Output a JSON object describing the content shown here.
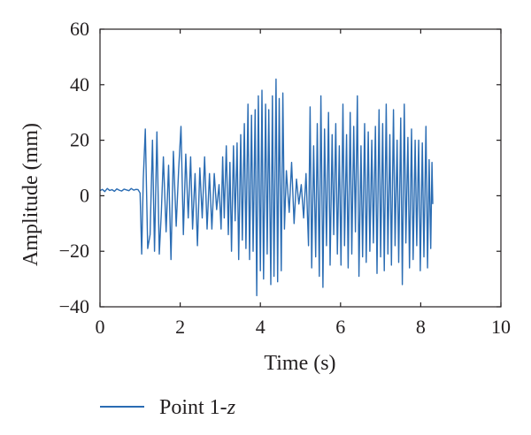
{
  "chart_data": {
    "type": "line",
    "xlabel": "Time (s)",
    "ylabel": "Amplitude (mm)",
    "xlim": [
      0,
      10
    ],
    "ylim": [
      -40,
      60
    ],
    "xticks": [
      0,
      2,
      4,
      6,
      8,
      10
    ],
    "yticks": [
      -40,
      -20,
      0,
      20,
      40,
      60
    ],
    "xtick_labels": [
      "0",
      "2",
      "4",
      "6",
      "8",
      "10"
    ],
    "ytick_labels": [
      "−40",
      "−20",
      "0",
      "20",
      "40",
      "60"
    ],
    "grid": false,
    "legend_position": "below",
    "series": [
      {
        "name": "Point 1-z",
        "color": "#2a6cb3",
        "x": [
          0,
          0.06,
          0.12,
          0.18,
          0.24,
          0.3,
          0.36,
          0.42,
          0.48,
          0.54,
          0.6,
          0.66,
          0.72,
          0.78,
          0.84,
          0.9,
          0.95,
          1.0,
          1.04,
          1.08,
          1.13,
          1.19,
          1.25,
          1.31,
          1.36,
          1.42,
          1.48,
          1.53,
          1.58,
          1.65,
          1.71,
          1.77,
          1.83,
          1.9,
          1.96,
          2.02,
          2.08,
          2.14,
          2.2,
          2.26,
          2.31,
          2.37,
          2.43,
          2.49,
          2.55,
          2.61,
          2.67,
          2.73,
          2.79,
          2.85,
          2.91,
          2.97,
          3.02,
          3.06,
          3.1,
          3.15,
          3.2,
          3.24,
          3.28,
          3.33,
          3.37,
          3.42,
          3.46,
          3.51,
          3.55,
          3.6,
          3.64,
          3.69,
          3.73,
          3.78,
          3.82,
          3.87,
          3.91,
          3.95,
          4.0,
          4.04,
          4.08,
          4.13,
          4.17,
          4.21,
          4.26,
          4.3,
          4.34,
          4.39,
          4.43,
          4.47,
          4.52,
          4.56,
          4.6,
          4.65,
          4.72,
          4.78,
          4.84,
          4.9,
          4.96,
          5.02,
          5.08,
          5.14,
          5.2,
          5.24,
          5.28,
          5.33,
          5.38,
          5.42,
          5.47,
          5.51,
          5.56,
          5.6,
          5.65,
          5.7,
          5.74,
          5.79,
          5.83,
          5.88,
          5.92,
          5.97,
          6.01,
          6.06,
          6.1,
          6.15,
          6.19,
          6.24,
          6.28,
          6.33,
          6.37,
          6.42,
          6.46,
          6.51,
          6.55,
          6.6,
          6.64,
          6.69,
          6.73,
          6.78,
          6.82,
          6.87,
          6.91,
          6.96,
          7.0,
          7.05,
          7.09,
          7.14,
          7.18,
          7.23,
          7.27,
          7.32,
          7.36,
          7.41,
          7.45,
          7.5,
          7.54,
          7.59,
          7.63,
          7.68,
          7.72,
          7.77,
          7.81,
          7.86,
          7.9,
          7.95,
          7.99,
          8.04,
          8.08,
          8.13,
          8.17,
          8.21,
          8.25,
          8.28,
          8.3
        ],
        "y": [
          1.8,
          2.3,
          1.5,
          2.6,
          1.9,
          2.2,
          1.6,
          2.5,
          2.0,
          1.7,
          2.4,
          2.1,
          1.8,
          2.6,
          2.0,
          2.3,
          2.2,
          1.0,
          -21,
          6,
          24,
          -19,
          -14,
          20,
          -20,
          23,
          -21,
          -6,
          14,
          -13,
          11,
          -23,
          16,
          -11,
          9,
          25,
          -14,
          15,
          -8,
          14,
          -12,
          8,
          -18,
          10,
          -8,
          14,
          -12,
          8,
          -12,
          8,
          -5,
          4,
          -12,
          14,
          -8,
          18,
          -14,
          12,
          -20,
          18,
          -9,
          19,
          -23,
          22,
          -16,
          26,
          -19,
          33,
          -23,
          29,
          -20,
          31,
          -36,
          36,
          -27,
          38,
          -30,
          33,
          -21,
          31,
          -32,
          36,
          -29,
          42,
          -31,
          35,
          -27,
          37,
          -12,
          9,
          -6,
          12,
          -10,
          6,
          -3,
          4,
          -8,
          8,
          -18,
          32,
          -26,
          18,
          -22,
          26,
          -29,
          36,
          -33,
          24,
          -18,
          30,
          -25,
          22,
          -14,
          26,
          -21,
          18,
          -25,
          33,
          -18,
          22,
          -26,
          30,
          -21,
          25,
          -13,
          36,
          -29,
          18,
          -22,
          26,
          -24,
          23,
          -20,
          20,
          -17,
          25,
          -28,
          31,
          -22,
          26,
          -27,
          33,
          -21,
          22,
          -25,
          31,
          -18,
          20,
          -24,
          28,
          -32,
          33,
          -17,
          21,
          -26,
          24,
          -23,
          20,
          -18,
          20,
          -27,
          19,
          -22,
          25,
          -26,
          13,
          -19,
          12,
          -3
        ]
      }
    ]
  },
  "legend": {
    "label": "Point 1-",
    "label_italic": "z",
    "color": "#2a6cb3"
  }
}
